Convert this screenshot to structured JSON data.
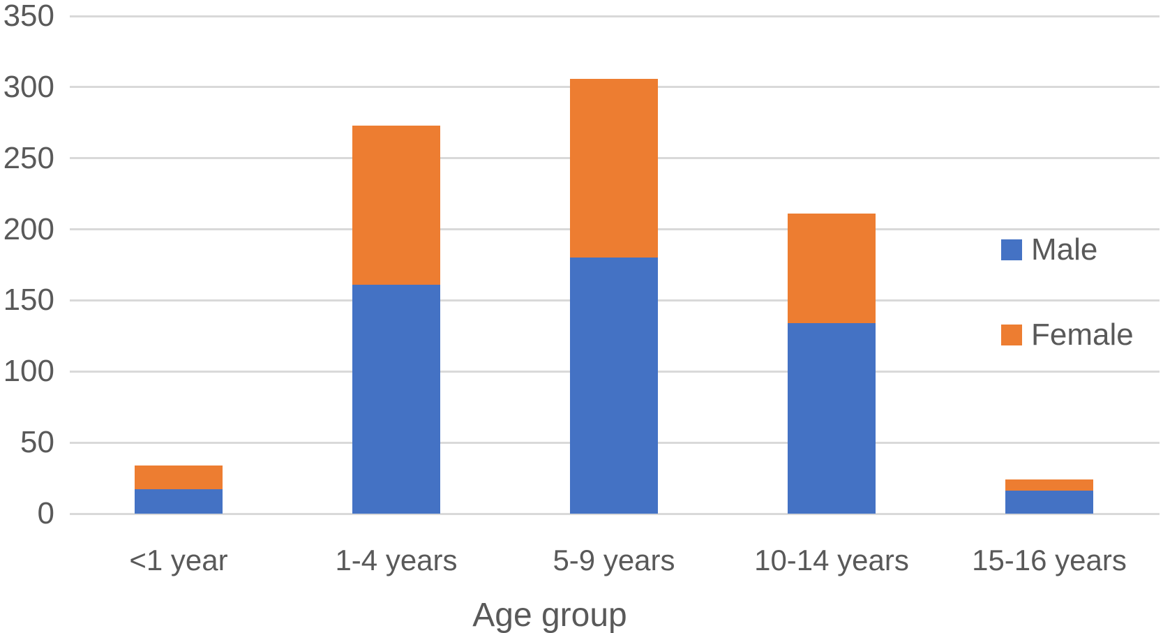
{
  "chart_data": {
    "type": "bar",
    "stacked": true,
    "title": "",
    "xlabel": "Age group",
    "ylabel": "",
    "categories": [
      "<1 year",
      "1-4 years",
      "5-9 years",
      "10-14 years",
      "15-16 years"
    ],
    "series": [
      {
        "name": "Male",
        "color": "#4472C4",
        "values": [
          17,
          161,
          180,
          134,
          16
        ]
      },
      {
        "name": "Female",
        "color": "#ED7D31",
        "values": [
          17,
          112,
          126,
          77,
          8
        ]
      }
    ],
    "totals": [
      34,
      273,
      306,
      211,
      24
    ],
    "ylim": [
      0,
      350
    ],
    "yticks": [
      0,
      50,
      100,
      150,
      200,
      250,
      300,
      350
    ],
    "grid": true,
    "legend_position": "right",
    "colors": {
      "male": "#4472C4",
      "female": "#ED7D31",
      "text": "#595959",
      "gridline": "#D9D9D9",
      "background": "#FFFFFF"
    }
  }
}
